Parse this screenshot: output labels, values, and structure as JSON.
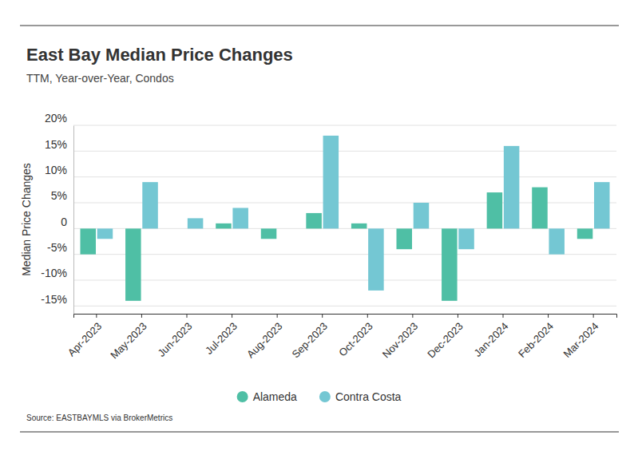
{
  "chart_data": {
    "type": "bar",
    "title": "East Bay Median Price Changes",
    "subtitle": "TTM, Year-over-Year, Condos",
    "y_label": "Median Price Changes",
    "source": "Source: EASTBAYMLS via BrokerMetrics",
    "categories": [
      "Apr-2023",
      "May-2023",
      "Jun-2023",
      "Jul-2023",
      "Aug-2023",
      "Sep-2023",
      "Oct-2023",
      "Nov-2023",
      "Dec-2023",
      "Jan-2024",
      "Feb-2024",
      "Mar-2024"
    ],
    "series": [
      {
        "name": "Alameda",
        "color": "#4fbfa5",
        "values": [
          -5,
          -14,
          0,
          1,
          -2,
          3,
          1,
          -4,
          -14,
          7,
          8,
          -2
        ]
      },
      {
        "name": "Contra Costa",
        "color": "#74c7d3",
        "values": [
          -2,
          9,
          2,
          4,
          0,
          18,
          -12,
          5,
          -4,
          16,
          -5,
          9
        ]
      }
    ],
    "ylim": [
      -16.5,
      20
    ],
    "yticks": [
      {
        "value": 20,
        "label": "20%"
      },
      {
        "value": 15,
        "label": "15%"
      },
      {
        "value": 10,
        "label": "10%"
      },
      {
        "value": 5,
        "label": "5%"
      },
      0,
      {
        "value": -5,
        "label": "-5%"
      },
      {
        "value": -10,
        "label": "-10%"
      },
      {
        "value": -15,
        "label": "-15%"
      }
    ],
    "grid": true,
    "legend": "bottom"
  }
}
